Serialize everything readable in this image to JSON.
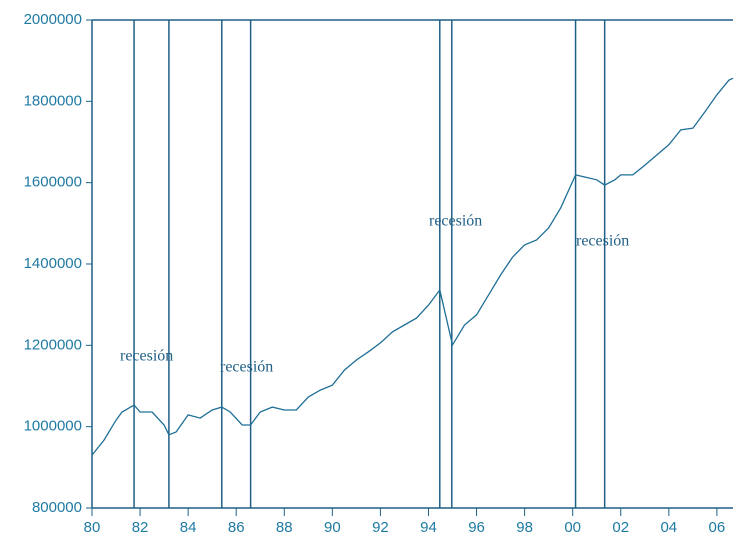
{
  "chart_data": {
    "type": "line",
    "x": [
      1980.0,
      1980.5,
      1981.0,
      1981.25,
      1981.75,
      1982.0,
      1982.5,
      1983.0,
      1983.2,
      1983.5,
      1984.0,
      1984.5,
      1985.0,
      1985.4,
      1985.75,
      1986.25,
      1986.6,
      1987.0,
      1987.5,
      1988.0,
      1988.5,
      1989.0,
      1989.5,
      1990.0,
      1990.5,
      1991.0,
      1991.5,
      1992.0,
      1992.5,
      1993.0,
      1993.5,
      1994.0,
      1994.47,
      1995.0,
      1995.5,
      1996.0,
      1996.5,
      1997.0,
      1997.5,
      1998.0,
      1998.5,
      1999.0,
      1999.5,
      2000.12,
      2000.5,
      2001.0,
      2001.33,
      2001.75,
      2002.0,
      2002.5,
      2003.0,
      2003.5,
      2004.0,
      2004.5,
      2005.0,
      2005.5,
      2006.0,
      2006.5,
      2006.67
    ],
    "series": [
      {
        "color": "#1f6f97",
        "values": [
          930000,
          967000,
          1016000,
          1036000,
          1053000,
          1036000,
          1036000,
          1004000,
          980000,
          987000,
          1029000,
          1021000,
          1041000,
          1048000,
          1036000,
          1004000,
          1004000,
          1036000,
          1048000,
          1041000,
          1041000,
          1073000,
          1090000,
          1102000,
          1139000,
          1164000,
          1184000,
          1206000,
          1233000,
          1250000,
          1267000,
          1299000,
          1336000,
          1201000,
          1250000,
          1275000,
          1324000,
          1373000,
          1417000,
          1447000,
          1459000,
          1489000,
          1538000,
          1619000,
          1614000,
          1607000,
          1594000,
          1607000,
          1619000,
          1619000,
          1643000,
          1668000,
          1693000,
          1730000,
          1734000,
          1774000,
          1816000,
          1852000,
          1857000
        ]
      }
    ],
    "recessions": [
      {
        "start": 1981.75,
        "end": 1983.2,
        "label": "recesión"
      },
      {
        "start": 1985.4,
        "end": 1986.6,
        "label": "recesión"
      },
      {
        "start": 1994.47,
        "end": 1994.97,
        "label": "recesión"
      },
      {
        "start": 2000.12,
        "end": 2001.33,
        "label": "recesión"
      }
    ],
    "xlim": [
      1980,
      2006.67
    ],
    "xticks": [
      {
        "value": 1980,
        "label": "80"
      },
      {
        "value": 1982,
        "label": "82"
      },
      {
        "value": 1984,
        "label": "84"
      },
      {
        "value": 1986,
        "label": "86"
      },
      {
        "value": 1988,
        "label": "88"
      },
      {
        "value": 1990,
        "label": "90"
      },
      {
        "value": 1992,
        "label": "92"
      },
      {
        "value": 1994,
        "label": "94"
      },
      {
        "value": 1996,
        "label": "96"
      },
      {
        "value": 1998,
        "label": "98"
      },
      {
        "value": 2000,
        "label": "00"
      },
      {
        "value": 2002,
        "label": "02"
      },
      {
        "value": 2004,
        "label": "04"
      },
      {
        "value": 2006,
        "label": "06"
      }
    ],
    "ylim": [
      800000,
      2000000
    ],
    "yticks": [
      800000,
      1000000,
      1200000,
      1400000,
      1600000,
      1800000,
      2000000
    ]
  }
}
